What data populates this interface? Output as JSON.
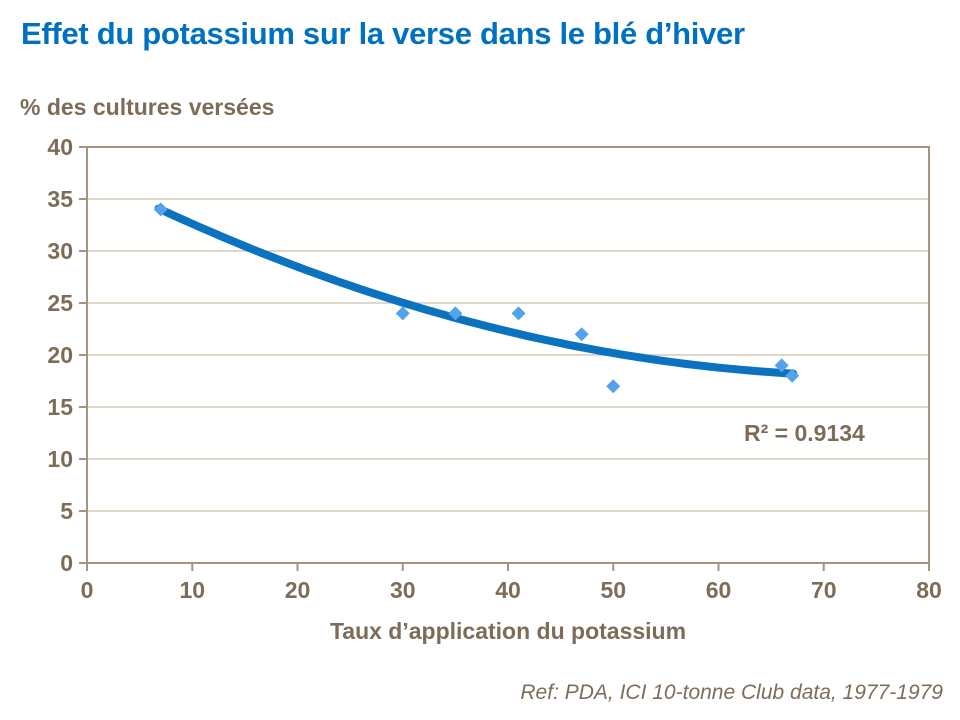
{
  "page": {
    "footer_reference": "Ref: PDA, ICI 10-tonne Club data, 1977-1979"
  },
  "colors": {
    "title_blue": "#0070C0",
    "axis_text_brown": "#7D6D58",
    "grid_line": "#CCC0AB",
    "plot_border": "#A59580",
    "marker_fill": "#54A2EA",
    "trend_line": "#0B72C0",
    "background": "#FFFFFF"
  },
  "chart_data": {
    "type": "scatter",
    "title": "Effet du potassium sur la verse dans le blé d’hiver",
    "ylabel": "% des cultures versées",
    "xlabel": "Taux d’application du potassium",
    "xlim": [
      0,
      80
    ],
    "ylim": [
      0,
      40
    ],
    "x_ticks": [
      0,
      10,
      20,
      30,
      40,
      50,
      60,
      70,
      80
    ],
    "y_ticks": [
      0,
      5,
      10,
      15,
      20,
      25,
      30,
      35,
      40
    ],
    "grid": "horizontal",
    "legend": "none",
    "points": [
      {
        "x": 7,
        "y": 34
      },
      {
        "x": 30,
        "y": 24
      },
      {
        "x": 35,
        "y": 24
      },
      {
        "x": 41,
        "y": 24
      },
      {
        "x": 47,
        "y": 22
      },
      {
        "x": 50,
        "y": 17
      },
      {
        "x": 66,
        "y": 19
      },
      {
        "x": 67,
        "y": 18
      }
    ],
    "trendline": {
      "type": "polynomial",
      "order": 2,
      "c2": 0.003424,
      "c1": -0.5163,
      "c0": 37.44,
      "x_start": 6.8,
      "x_end": 67.1
    },
    "r_squared": 0.9134,
    "r_squared_label": "R² = 0.9134"
  }
}
